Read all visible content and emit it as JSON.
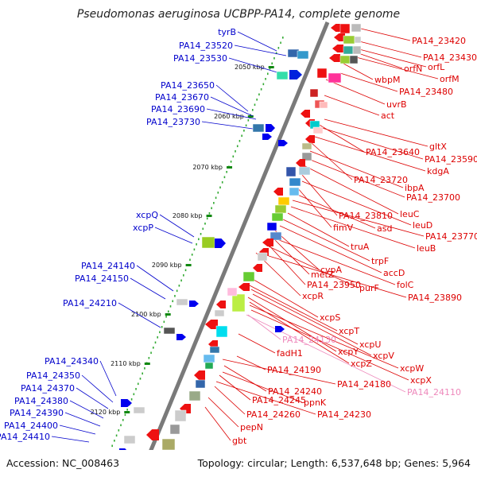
{
  "title": "Pseudomonas aeruginosa UCBPP-PA14, complete genome",
  "footer": {
    "accession": "Accession: NC_008463",
    "topology": "Topology: circular; Length: 6,537,648 bp; Genes: 5,964"
  },
  "ruler_labels": [
    "2050 kbp",
    "2060 kbp",
    "2070 kbp",
    "2080 kbp",
    "2090 kbp",
    "2100 kbp",
    "2110 kbp",
    "2120 kbp"
  ],
  "left_labels": [
    "tyrB",
    "PA14_23520",
    "PA14_23530",
    "PA14_23650",
    "PA14_23670",
    "PA14_23690",
    "PA14_23730",
    "xcpQ",
    "xcpP",
    "PA14_24140",
    "PA14_24150",
    "PA14_24210",
    "PA14_24340",
    "PA14_24350",
    "PA14_24370",
    "PA14_24380",
    "PA14_24390",
    "PA14_24400",
    "PA14_24410"
  ],
  "right_labels": [
    "PA14_23420",
    "PA14_23430",
    "orfL",
    "orfN",
    "orfM",
    "wbpM",
    "PA14_23480",
    "uvrB",
    "act",
    "gltX",
    "PA14_23640",
    "PA14_23590",
    "kdgA",
    "PA14_23720",
    "ibpA",
    "PA14_23700",
    "leuC",
    "PA14_23810",
    "leuD",
    "fimV",
    "asd",
    "PA14_23770",
    "leuB",
    "truA",
    "trpF",
    "accD",
    "cvpA",
    "metZ",
    "folC",
    "PA14_23950",
    "purF",
    "xcpR",
    "PA14_23890",
    "xcpS",
    "xcpT",
    "PA14_24130",
    "xcpU",
    "xcpV",
    "fadH1",
    "xcpY",
    "xcpZ",
    "xcpW",
    "PA14_24190",
    "xcpX",
    "PA14_24180",
    "PA14_24240",
    "PA14_24110",
    "ppnK",
    "PA14_24245",
    "PA14_24230",
    "PA14_24260",
    "pepN",
    "gbt"
  ],
  "colors": {
    "left_label": "#0000cc",
    "right_label": "#dd0000",
    "faded_label": "#ee88bb",
    "backbone": "#888888",
    "ruler_dot": "#33aa33"
  }
}
